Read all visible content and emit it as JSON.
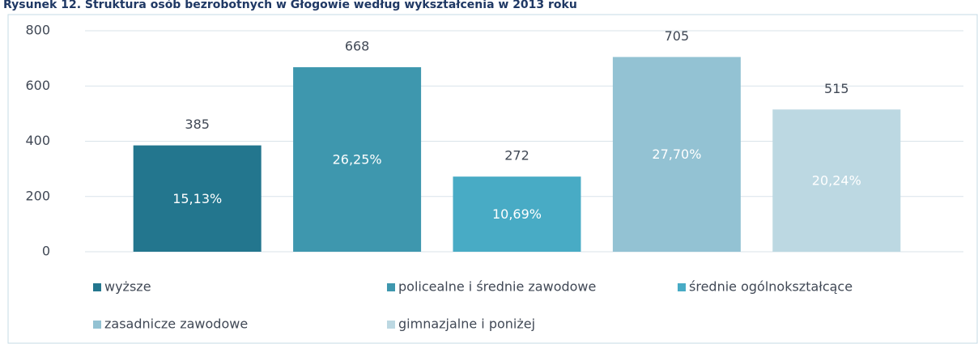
{
  "chart_data": {
    "type": "bar",
    "title": "Rysunek 12. Struktura osób bezrobotnych w Głogowie według wykształcenia w 2013 roku",
    "categories": [
      "wyższe",
      "policealne i średnie zawodowe",
      "średnie ogólnokształcące",
      "zasadnicze zawodowe",
      "gimnazjalne i poniżej"
    ],
    "values": [
      385,
      668,
      272,
      705,
      515
    ],
    "percent_labels": [
      "15,13%",
      "26,25%",
      "10,69%",
      "27,70%",
      "20,24%"
    ],
    "colors": [
      "#23768e",
      "#3e97ae",
      "#48abc5",
      "#93c2d3",
      "#bcd8e2"
    ],
    "ylim": [
      0,
      800
    ],
    "yticks": [
      0,
      200,
      400,
      600,
      800
    ],
    "grid": true,
    "legend": "bottom"
  }
}
